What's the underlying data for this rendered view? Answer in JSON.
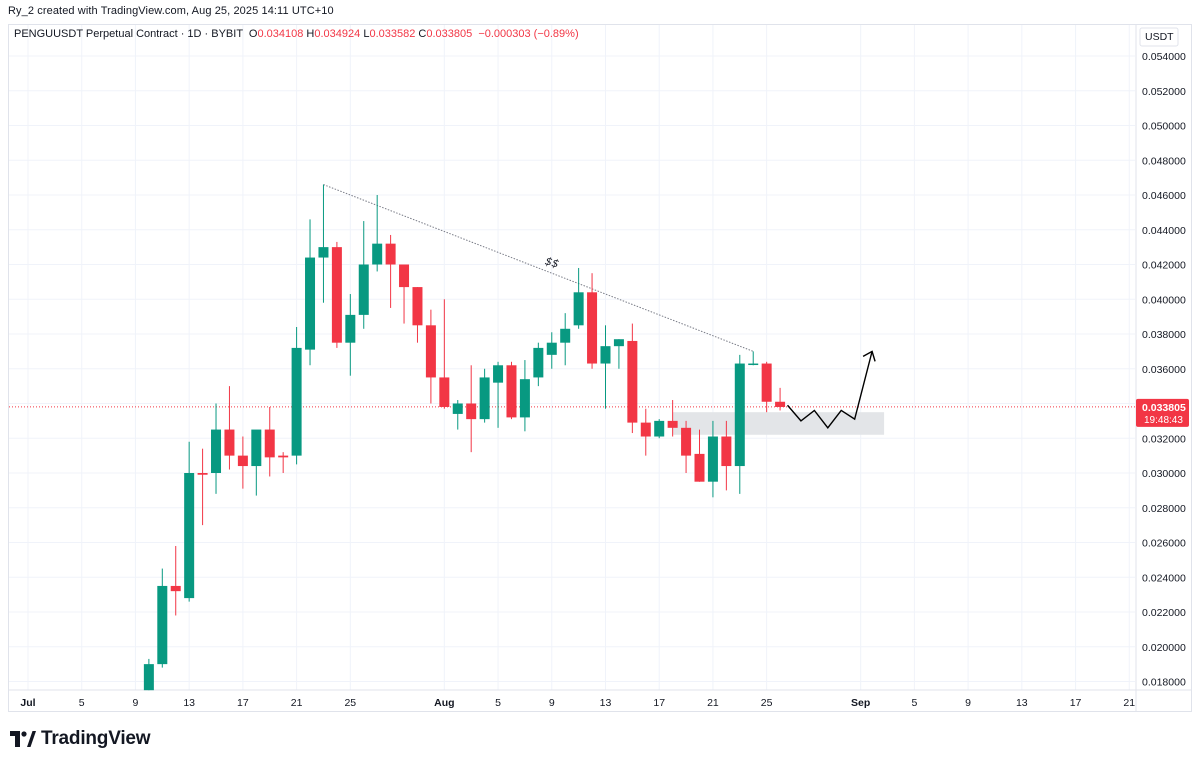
{
  "header": {
    "credit": "Ry_2 created with TradingView.com, Aug 25, 2025 14:11 UTC+10"
  },
  "legend": {
    "symbol_line": "PENGUUSDT Perpetual Contract · 1D · BYBIT",
    "o_label": "O",
    "o_value": "0.034108",
    "h_label": "H",
    "h_value": "0.034924",
    "l_label": "L",
    "l_value": "0.033582",
    "c_label": "C",
    "c_value": "0.033805",
    "change": "−0.000303 (−0.89%)"
  },
  "price_axis": {
    "currency": "USDT",
    "last_price": "0.033805",
    "countdown": "19:48:43"
  },
  "footer": {
    "brand": "TradingView"
  },
  "colors": {
    "up": "#089981",
    "down": "#f23645",
    "grid": "#f0f3fa",
    "zone": "#e3e5e8",
    "trendline": "#787b86",
    "projection": "#000000"
  },
  "chart_data": {
    "type": "candlestick",
    "title": "PENGUUSDT Perpetual Contract · 1D · BYBIT",
    "ylim": [
      0.0174,
      0.0555
    ],
    "y_ticks": [
      "0.018000",
      "0.020000",
      "0.022000",
      "0.024000",
      "0.026000",
      "0.028000",
      "0.030000",
      "0.032000",
      "0.034000",
      "0.036000",
      "0.038000",
      "0.040000",
      "0.042000",
      "0.044000",
      "0.046000",
      "0.048000",
      "0.050000",
      "0.052000",
      "0.054000"
    ],
    "x_ticks": [
      {
        "day": 0,
        "label": "Jul"
      },
      {
        "day": 4,
        "label": "5"
      },
      {
        "day": 8,
        "label": "9"
      },
      {
        "day": 12,
        "label": "13"
      },
      {
        "day": 16,
        "label": "17"
      },
      {
        "day": 20,
        "label": "21"
      },
      {
        "day": 24,
        "label": "25"
      },
      {
        "day": 31,
        "label": "Aug"
      },
      {
        "day": 35,
        "label": "5"
      },
      {
        "day": 39,
        "label": "9"
      },
      {
        "day": 43,
        "label": "13"
      },
      {
        "day": 47,
        "label": "17"
      },
      {
        "day": 51,
        "label": "21"
      },
      {
        "day": 55,
        "label": "25"
      },
      {
        "day": 62,
        "label": "Sep"
      },
      {
        "day": 66,
        "label": "5"
      },
      {
        "day": 70,
        "label": "9"
      },
      {
        "day": 74,
        "label": "13"
      },
      {
        "day": 78,
        "label": "17"
      },
      {
        "day": 82,
        "label": "21"
      }
    ],
    "candles": [
      {
        "d": 9,
        "o": 0.0175,
        "h": 0.0193,
        "l": 0.0175,
        "c": 0.019
      },
      {
        "d": 10,
        "o": 0.019,
        "h": 0.0245,
        "l": 0.0188,
        "c": 0.0235
      },
      {
        "d": 11,
        "o": 0.0235,
        "h": 0.0258,
        "l": 0.0218,
        "c": 0.0232
      },
      {
        "d": 12,
        "o": 0.0228,
        "h": 0.0318,
        "l": 0.0226,
        "c": 0.03
      },
      {
        "d": 13,
        "o": 0.03,
        "h": 0.0314,
        "l": 0.027,
        "c": 0.0299
      },
      {
        "d": 14,
        "o": 0.03,
        "h": 0.034,
        "l": 0.0288,
        "c": 0.0325
      },
      {
        "d": 15,
        "o": 0.0325,
        "h": 0.035,
        "l": 0.0302,
        "c": 0.031
      },
      {
        "d": 16,
        "o": 0.031,
        "h": 0.0321,
        "l": 0.0291,
        "c": 0.0304
      },
      {
        "d": 17,
        "o": 0.0304,
        "h": 0.0324,
        "l": 0.0287,
        "c": 0.0325
      },
      {
        "d": 18,
        "o": 0.0325,
        "h": 0.0338,
        "l": 0.0298,
        "c": 0.0309
      },
      {
        "d": 19,
        "o": 0.031,
        "h": 0.0312,
        "l": 0.03,
        "c": 0.0309
      },
      {
        "d": 20,
        "o": 0.031,
        "h": 0.0384,
        "l": 0.0305,
        "c": 0.0372
      },
      {
        "d": 21,
        "o": 0.0371,
        "h": 0.0446,
        "l": 0.0362,
        "c": 0.0424
      },
      {
        "d": 22,
        "o": 0.0424,
        "h": 0.0466,
        "l": 0.0398,
        "c": 0.043
      },
      {
        "d": 23,
        "o": 0.043,
        "h": 0.0433,
        "l": 0.0372,
        "c": 0.0375
      },
      {
        "d": 24,
        "o": 0.0375,
        "h": 0.0403,
        "l": 0.0356,
        "c": 0.0391
      },
      {
        "d": 25,
        "o": 0.0391,
        "h": 0.0445,
        "l": 0.0383,
        "c": 0.042
      },
      {
        "d": 26,
        "o": 0.042,
        "h": 0.046,
        "l": 0.0416,
        "c": 0.0432
      },
      {
        "d": 27,
        "o": 0.0432,
        "h": 0.0437,
        "l": 0.0395,
        "c": 0.042
      },
      {
        "d": 28,
        "o": 0.042,
        "h": 0.042,
        "l": 0.0386,
        "c": 0.0407
      },
      {
        "d": 29,
        "o": 0.0407,
        "h": 0.0407,
        "l": 0.0375,
        "c": 0.0385
      },
      {
        "d": 30,
        "o": 0.0385,
        "h": 0.0394,
        "l": 0.034,
        "c": 0.0355
      },
      {
        "d": 31,
        "o": 0.0355,
        "h": 0.04,
        "l": 0.0337,
        "c": 0.0338
      },
      {
        "d": 32,
        "o": 0.0334,
        "h": 0.0342,
        "l": 0.0325,
        "c": 0.034
      },
      {
        "d": 33,
        "o": 0.034,
        "h": 0.0362,
        "l": 0.0312,
        "c": 0.0331
      },
      {
        "d": 34,
        "o": 0.0331,
        "h": 0.036,
        "l": 0.0329,
        "c": 0.0355
      },
      {
        "d": 35,
        "o": 0.0352,
        "h": 0.0364,
        "l": 0.0326,
        "c": 0.0362
      },
      {
        "d": 36,
        "o": 0.0362,
        "h": 0.0364,
        "l": 0.0331,
        "c": 0.0332
      },
      {
        "d": 37,
        "o": 0.0332,
        "h": 0.0365,
        "l": 0.0324,
        "c": 0.0354
      },
      {
        "d": 38,
        "o": 0.0355,
        "h": 0.0375,
        "l": 0.035,
        "c": 0.0372
      },
      {
        "d": 39,
        "o": 0.0368,
        "h": 0.0381,
        "l": 0.036,
        "c": 0.0375
      },
      {
        "d": 40,
        "o": 0.0375,
        "h": 0.0392,
        "l": 0.0362,
        "c": 0.0383
      },
      {
        "d": 41,
        "o": 0.0385,
        "h": 0.0418,
        "l": 0.0383,
        "c": 0.0404
      },
      {
        "d": 42,
        "o": 0.0404,
        "h": 0.0415,
        "l": 0.036,
        "c": 0.0363
      },
      {
        "d": 43,
        "o": 0.0363,
        "h": 0.0385,
        "l": 0.0337,
        "c": 0.0373
      },
      {
        "d": 44,
        "o": 0.0373,
        "h": 0.0377,
        "l": 0.036,
        "c": 0.0377
      },
      {
        "d": 45,
        "o": 0.0376,
        "h": 0.0386,
        "l": 0.0323,
        "c": 0.0329
      },
      {
        "d": 46,
        "o": 0.0329,
        "h": 0.0337,
        "l": 0.031,
        "c": 0.0321
      },
      {
        "d": 47,
        "o": 0.0321,
        "h": 0.0331,
        "l": 0.032,
        "c": 0.033
      },
      {
        "d": 48,
        "o": 0.033,
        "h": 0.0342,
        "l": 0.0321,
        "c": 0.0326
      },
      {
        "d": 49,
        "o": 0.0326,
        "h": 0.033,
        "l": 0.03,
        "c": 0.031
      },
      {
        "d": 50,
        "o": 0.0311,
        "h": 0.0325,
        "l": 0.0295,
        "c": 0.0295
      },
      {
        "d": 51,
        "o": 0.0295,
        "h": 0.033,
        "l": 0.0286,
        "c": 0.0321
      },
      {
        "d": 52,
        "o": 0.0321,
        "h": 0.033,
        "l": 0.029,
        "c": 0.0304
      },
      {
        "d": 53,
        "o": 0.0304,
        "h": 0.0368,
        "l": 0.0288,
        "c": 0.0363
      },
      {
        "d": 54,
        "o": 0.0363,
        "h": 0.037,
        "l": 0.0362,
        "c": 0.0363
      },
      {
        "d": 55,
        "o": 0.0363,
        "h": 0.0364,
        "l": 0.0335,
        "c": 0.0341
      },
      {
        "d": 56,
        "o": 0.0341,
        "h": 0.0349,
        "l": 0.0336,
        "c": 0.0338
      }
    ],
    "annotations": {
      "trendline": {
        "from": {
          "d": 22,
          "price": 0.0466
        },
        "to": {
          "d": 54,
          "price": 0.037
        },
        "label": "$$"
      },
      "zone": {
        "d_start": 48,
        "d_end": 63,
        "high": 0.0335,
        "low": 0.0322
      },
      "projection": [
        {
          "d": 57,
          "price": 0.0339
        },
        {
          "d": 58,
          "price": 0.033
        },
        {
          "d": 59,
          "price": 0.0336
        },
        {
          "d": 60,
          "price": 0.0326
        },
        {
          "d": 61,
          "price": 0.0336
        },
        {
          "d": 62,
          "price": 0.0331
        },
        {
          "d": 63,
          "price": 0.037
        }
      ],
      "current_price": 0.033805
    }
  }
}
